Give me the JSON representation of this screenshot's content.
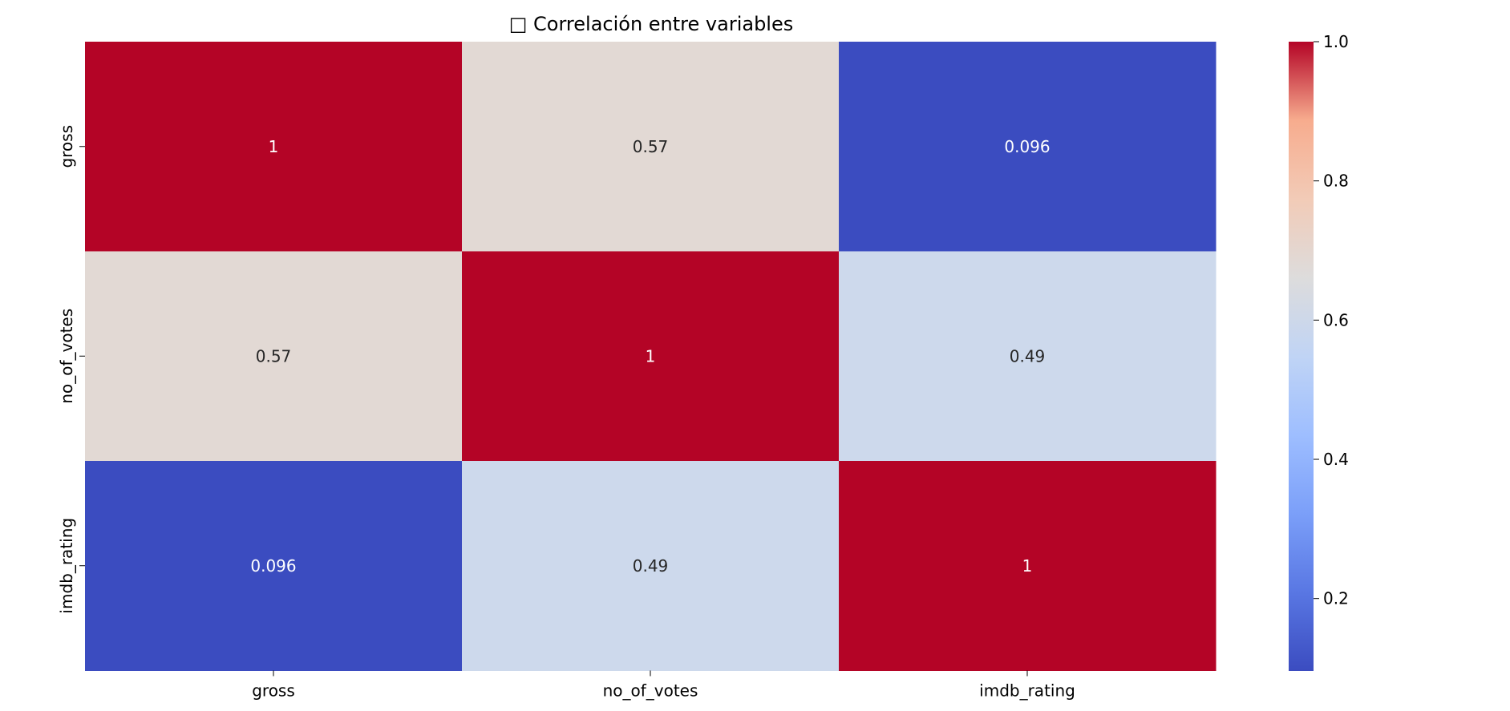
{
  "chart_data": {
    "type": "heatmap",
    "title": "□ Correlación entre variables",
    "x_labels": [
      "gross",
      "no_of_votes",
      "imdb_rating"
    ],
    "y_labels": [
      "gross",
      "no_of_votes",
      "imdb_rating"
    ],
    "values": [
      [
        1,
        0.57,
        0.096
      ],
      [
        0.57,
        1,
        0.49
      ],
      [
        0.096,
        0.49,
        1
      ]
    ],
    "annotations": [
      [
        "1",
        "0.57",
        "0.096"
      ],
      [
        "0.57",
        "1",
        "0.49"
      ],
      [
        "0.096",
        "0.49",
        "1"
      ]
    ],
    "colormap": "coolwarm",
    "color_range": [
      0.096,
      1.0
    ],
    "colorbar_ticks": [
      "0.2",
      "0.4",
      "0.6",
      "0.8",
      "1.0"
    ],
    "colorbar_tick_values": [
      0.2,
      0.4,
      0.6,
      0.8,
      1.0
    ]
  }
}
